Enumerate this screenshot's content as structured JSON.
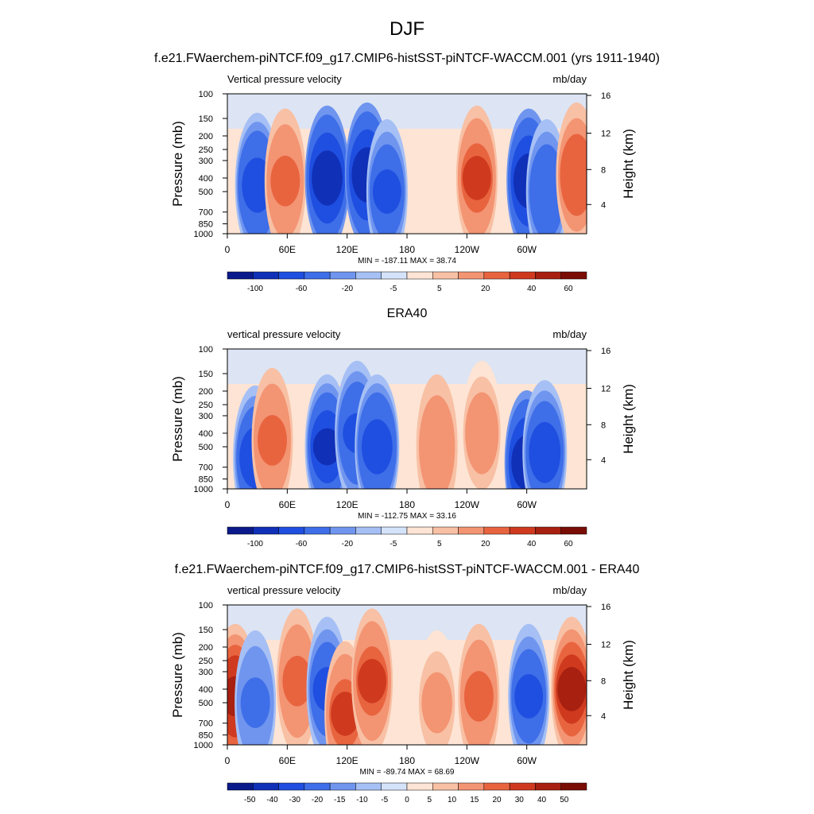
{
  "figure": {
    "title": "DJF"
  },
  "chart_data": [
    {
      "type": "heatmap",
      "title": "f.e21.FWaerchem-piNTCF.f09_g17.CMIP6-histSST-piNTCF-WACCM.001 (yrs 1911-1940)",
      "left_label": "Vertical pressure velocity",
      "right_label": "mb/day",
      "ylabel": "Pressure (mb)",
      "ylabel_right": "Height (km)",
      "x_ticks": [
        "0",
        "60E",
        "120E",
        "180",
        "120W",
        "60W"
      ],
      "y_ticks": [
        "100",
        "150",
        "200",
        "250",
        "300",
        "400",
        "500",
        "700",
        "850",
        "1000"
      ],
      "y2_ticks": [
        "16",
        "12",
        "8",
        "4"
      ],
      "stats": "MIN = -187.11  MAX =  38.74",
      "colorbar_labels": [
        "-100",
        "-60",
        "-20",
        "-5",
        "5",
        "20",
        "40",
        "60"
      ],
      "features": [
        {
          "lon": 30,
          "p": 450,
          "value": -55
        },
        {
          "lon": 58,
          "p": 420,
          "value": 25
        },
        {
          "lon": 100,
          "p": 400,
          "value": -80
        },
        {
          "lon": 140,
          "p": 380,
          "value": -70
        },
        {
          "lon": 160,
          "p": 500,
          "value": -40
        },
        {
          "lon": 250,
          "p": 400,
          "value": 30
        },
        {
          "lon": 302,
          "p": 420,
          "value": -75
        },
        {
          "lon": 320,
          "p": 500,
          "value": -35
        },
        {
          "lon": 350,
          "p": 380,
          "value": 28
        }
      ]
    },
    {
      "type": "heatmap",
      "title": "ERA40",
      "left_label": "vertical pressure velocity",
      "right_label": "mb/day",
      "ylabel": "Pressure (mb)",
      "ylabel_right": "Height (km)",
      "x_ticks": [
        "0",
        "60E",
        "120E",
        "180",
        "120W",
        "60W"
      ],
      "y_ticks": [
        "100",
        "150",
        "200",
        "250",
        "300",
        "400",
        "500",
        "700",
        "850",
        "1000"
      ],
      "y2_ticks": [
        "16",
        "12",
        "8",
        "4"
      ],
      "stats": "MIN = -112.75  MAX =  33.16",
      "colorbar_labels": [
        "-100",
        "-60",
        "-20",
        "-5",
        "5",
        "20",
        "40",
        "60"
      ],
      "features": [
        {
          "lon": 28,
          "p": 600,
          "value": -50
        },
        {
          "lon": 45,
          "p": 450,
          "value": 25
        },
        {
          "lon": 100,
          "p": 500,
          "value": -60
        },
        {
          "lon": 130,
          "p": 400,
          "value": -45
        },
        {
          "lon": 150,
          "p": 500,
          "value": -55
        },
        {
          "lon": 210,
          "p": 500,
          "value": 15
        },
        {
          "lon": 255,
          "p": 400,
          "value": 18
        },
        {
          "lon": 300,
          "p": 650,
          "value": -70
        },
        {
          "lon": 318,
          "p": 550,
          "value": -50
        }
      ]
    },
    {
      "type": "heatmap",
      "title": "f.e21.FWaerchem-piNTCF.f09_g17.CMIP6-histSST-piNTCF-WACCM.001 - ERA40",
      "left_label": "vertical pressure velocity",
      "right_label": "mb/day",
      "ylabel": "Pressure (mb)",
      "ylabel_right": "Height (km)",
      "x_ticks": [
        "0",
        "60E",
        "120E",
        "180",
        "120W",
        "60W"
      ],
      "y_ticks": [
        "100",
        "150",
        "200",
        "250",
        "300",
        "400",
        "500",
        "700",
        "850",
        "1000"
      ],
      "y2_ticks": [
        "16",
        "12",
        "8",
        "4"
      ],
      "stats": "MIN = -89.74  MAX =  68.69",
      "colorbar_labels": [
        "-50",
        "-40",
        "-30",
        "-20",
        "-15",
        "-10",
        "-5",
        "0",
        "5",
        "10",
        "15",
        "20",
        "30",
        "40",
        "50"
      ],
      "features": [
        {
          "lon": 8,
          "p": 450,
          "value": 45
        },
        {
          "lon": 28,
          "p": 500,
          "value": -20
        },
        {
          "lon": 70,
          "p": 350,
          "value": 25
        },
        {
          "lon": 100,
          "p": 400,
          "value": -40
        },
        {
          "lon": 118,
          "p": 600,
          "value": 30
        },
        {
          "lon": 145,
          "p": 350,
          "value": 30
        },
        {
          "lon": 210,
          "p": 500,
          "value": 10
        },
        {
          "lon": 252,
          "p": 450,
          "value": 20
        },
        {
          "lon": 302,
          "p": 450,
          "value": -40
        },
        {
          "lon": 345,
          "p": 400,
          "value": 40
        }
      ]
    }
  ]
}
